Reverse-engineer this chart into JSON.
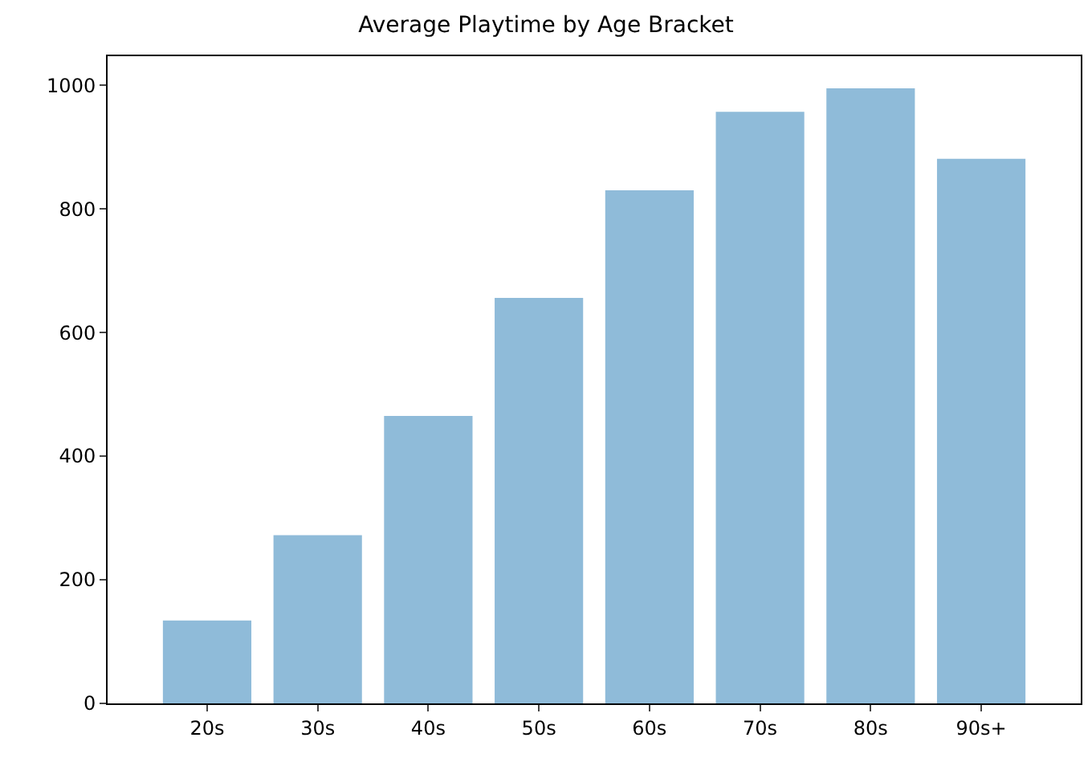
{
  "chart_data": {
    "type": "bar",
    "title": "Average Playtime by Age Bracket",
    "categories": [
      "20s",
      "30s",
      "40s",
      "50s",
      "60s",
      "70s",
      "80s",
      "90s+"
    ],
    "values": [
      134,
      272,
      465,
      656,
      830,
      957,
      995,
      881
    ],
    "color": "#8fbbd9",
    "ylim": [
      0,
      1047
    ],
    "yticks": [
      0,
      200,
      400,
      600,
      800,
      1000
    ]
  }
}
